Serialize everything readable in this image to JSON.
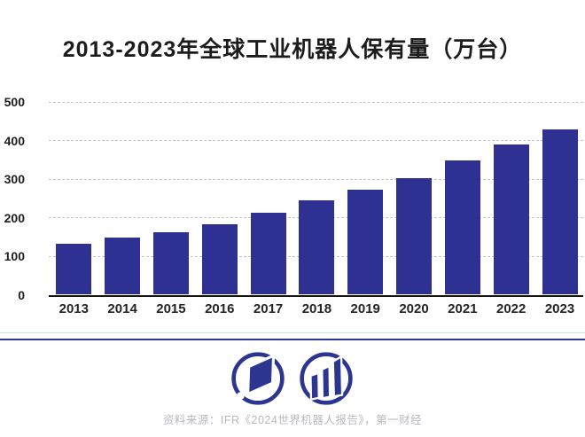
{
  "title": "2013-2023年全球工业机器人保有量（万台）",
  "chart_data": {
    "type": "bar",
    "title": "2013-2023年全球工业机器人保有量（万台）",
    "categories": [
      "2013",
      "2014",
      "2015",
      "2016",
      "2017",
      "2018",
      "2019",
      "2020",
      "2021",
      "2022",
      "2023"
    ],
    "values": [
      133,
      147,
      163,
      182,
      212,
      244,
      272,
      302,
      348,
      390,
      428
    ],
    "xlabel": "",
    "ylabel": "万台",
    "ylim": [
      0,
      500
    ],
    "yticks": [
      0,
      100,
      200,
      300,
      400,
      500
    ],
    "grid": "horizontal-dashed",
    "legend": "none",
    "bar_color": "#2e3192"
  },
  "footer": {
    "source_text": "资料来源：IFR《2024世界机器人报告》，第一财经",
    "logos": [
      {
        "name": "yicai-circle-parallelogram-logo"
      },
      {
        "name": "circle-bar-chart-logo"
      }
    ]
  },
  "colors": {
    "navy": "#2e3192",
    "divider": "#2c3590",
    "grid": "#c6c6c6",
    "axis": "#151515",
    "title_text": "#1c1c1c",
    "tick_text": "#1d1d1d",
    "source_text": "#b7b8c2",
    "background": "#ffffff"
  }
}
